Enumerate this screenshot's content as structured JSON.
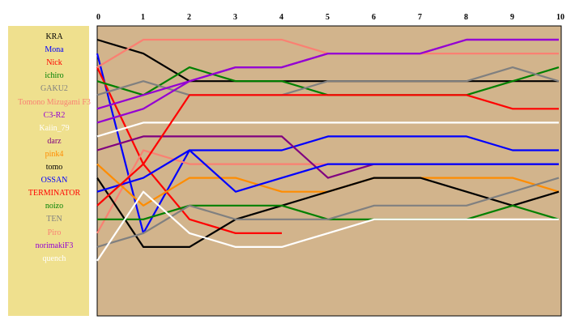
{
  "chart_data": {
    "type": "line",
    "x": [
      0,
      1,
      2,
      3,
      4,
      5,
      6,
      7,
      8,
      9,
      10
    ],
    "xticks": [
      "0",
      "1",
      "2",
      "3",
      "4",
      "5",
      "6",
      "7",
      "8",
      "9",
      "10"
    ],
    "ylim": [
      0.5,
      18.5
    ],
    "y_inverted": true,
    "grid": false,
    "legend_position": "left",
    "plot_background": "#d2b48c",
    "legend_background": "#efe08e",
    "series": [
      {
        "name": "KRA",
        "color": "#000000",
        "values": [
          1,
          2,
          4,
          4,
          4,
          4,
          4,
          4,
          4,
          4,
          4
        ]
      },
      {
        "name": "Mona",
        "color": "#0000ff",
        "values": [
          2,
          15,
          9,
          9,
          9,
          8,
          8,
          8,
          8,
          9,
          9
        ]
      },
      {
        "name": "Nick",
        "color": "#ff0000",
        "values": [
          3,
          10,
          14,
          15,
          15,
          null,
          null,
          null,
          null,
          null,
          null
        ]
      },
      {
        "name": "ichiro",
        "color": "#008000",
        "values": [
          4,
          5,
          3,
          4,
          4,
          5,
          5,
          5,
          5,
          4,
          3
        ]
      },
      {
        "name": "GAKU2",
        "color": "#808080",
        "values": [
          5,
          4,
          5,
          5,
          5,
          4,
          4,
          4,
          4,
          3,
          4
        ]
      },
      {
        "name": "Tomono Mizugami F3",
        "color": "#fa8072",
        "values": [
          15,
          9,
          10,
          10,
          10,
          10,
          10,
          10,
          10,
          10,
          10
        ]
      },
      {
        "name": "C3-R2",
        "color": "#9400d3",
        "values": [
          7,
          6,
          4,
          3,
          3,
          2,
          2,
          2,
          1,
          1,
          1
        ]
      },
      {
        "name": "Kaiin_79",
        "color": "#ffffff",
        "values": [
          8,
          7,
          7,
          7,
          7,
          7,
          7,
          7,
          7,
          7,
          7
        ]
      },
      {
        "name": "darz",
        "color": "#800080",
        "values": [
          9,
          8,
          8,
          8,
          8,
          11,
          10,
          10,
          10,
          10,
          10
        ]
      },
      {
        "name": "pink4",
        "color": "#ff8c00",
        "values": [
          10,
          13,
          11,
          11,
          12,
          12,
          11,
          11,
          11,
          11,
          12
        ]
      },
      {
        "name": "tomo",
        "color": "#000000",
        "values": [
          11,
          16,
          16,
          14,
          13,
          12,
          11,
          11,
          12,
          13,
          12
        ]
      },
      {
        "name": "OSSAN",
        "color": "#0000ff",
        "values": [
          12,
          11,
          9,
          12,
          11,
          10,
          10,
          10,
          10,
          10,
          10
        ]
      },
      {
        "name": "TERMINATOR",
        "color": "#ff0000",
        "values": [
          13,
          10,
          5,
          5,
          5,
          5,
          5,
          5,
          5,
          6,
          6
        ]
      },
      {
        "name": "noizo",
        "color": "#008000",
        "values": [
          14,
          14,
          13,
          13,
          13,
          14,
          14,
          14,
          14,
          13,
          14
        ]
      },
      {
        "name": "TEN",
        "color": "#808080",
        "values": [
          16,
          15,
          13,
          14,
          14,
          14,
          13,
          13,
          13,
          12,
          11
        ]
      },
      {
        "name": "Piro",
        "color": "#fa8072",
        "values": [
          3,
          1,
          1,
          1,
          1,
          2,
          2,
          2,
          2,
          2,
          2
        ]
      },
      {
        "name": "norimakiF3",
        "color": "#9400d3",
        "values": [
          6,
          5,
          4,
          3,
          3,
          2,
          2,
          2,
          1,
          1,
          1
        ]
      },
      {
        "name": "quench",
        "color": "#ffffff",
        "values": [
          17,
          12,
          15,
          16,
          16,
          15,
          14,
          14,
          14,
          14,
          14
        ]
      }
    ]
  }
}
